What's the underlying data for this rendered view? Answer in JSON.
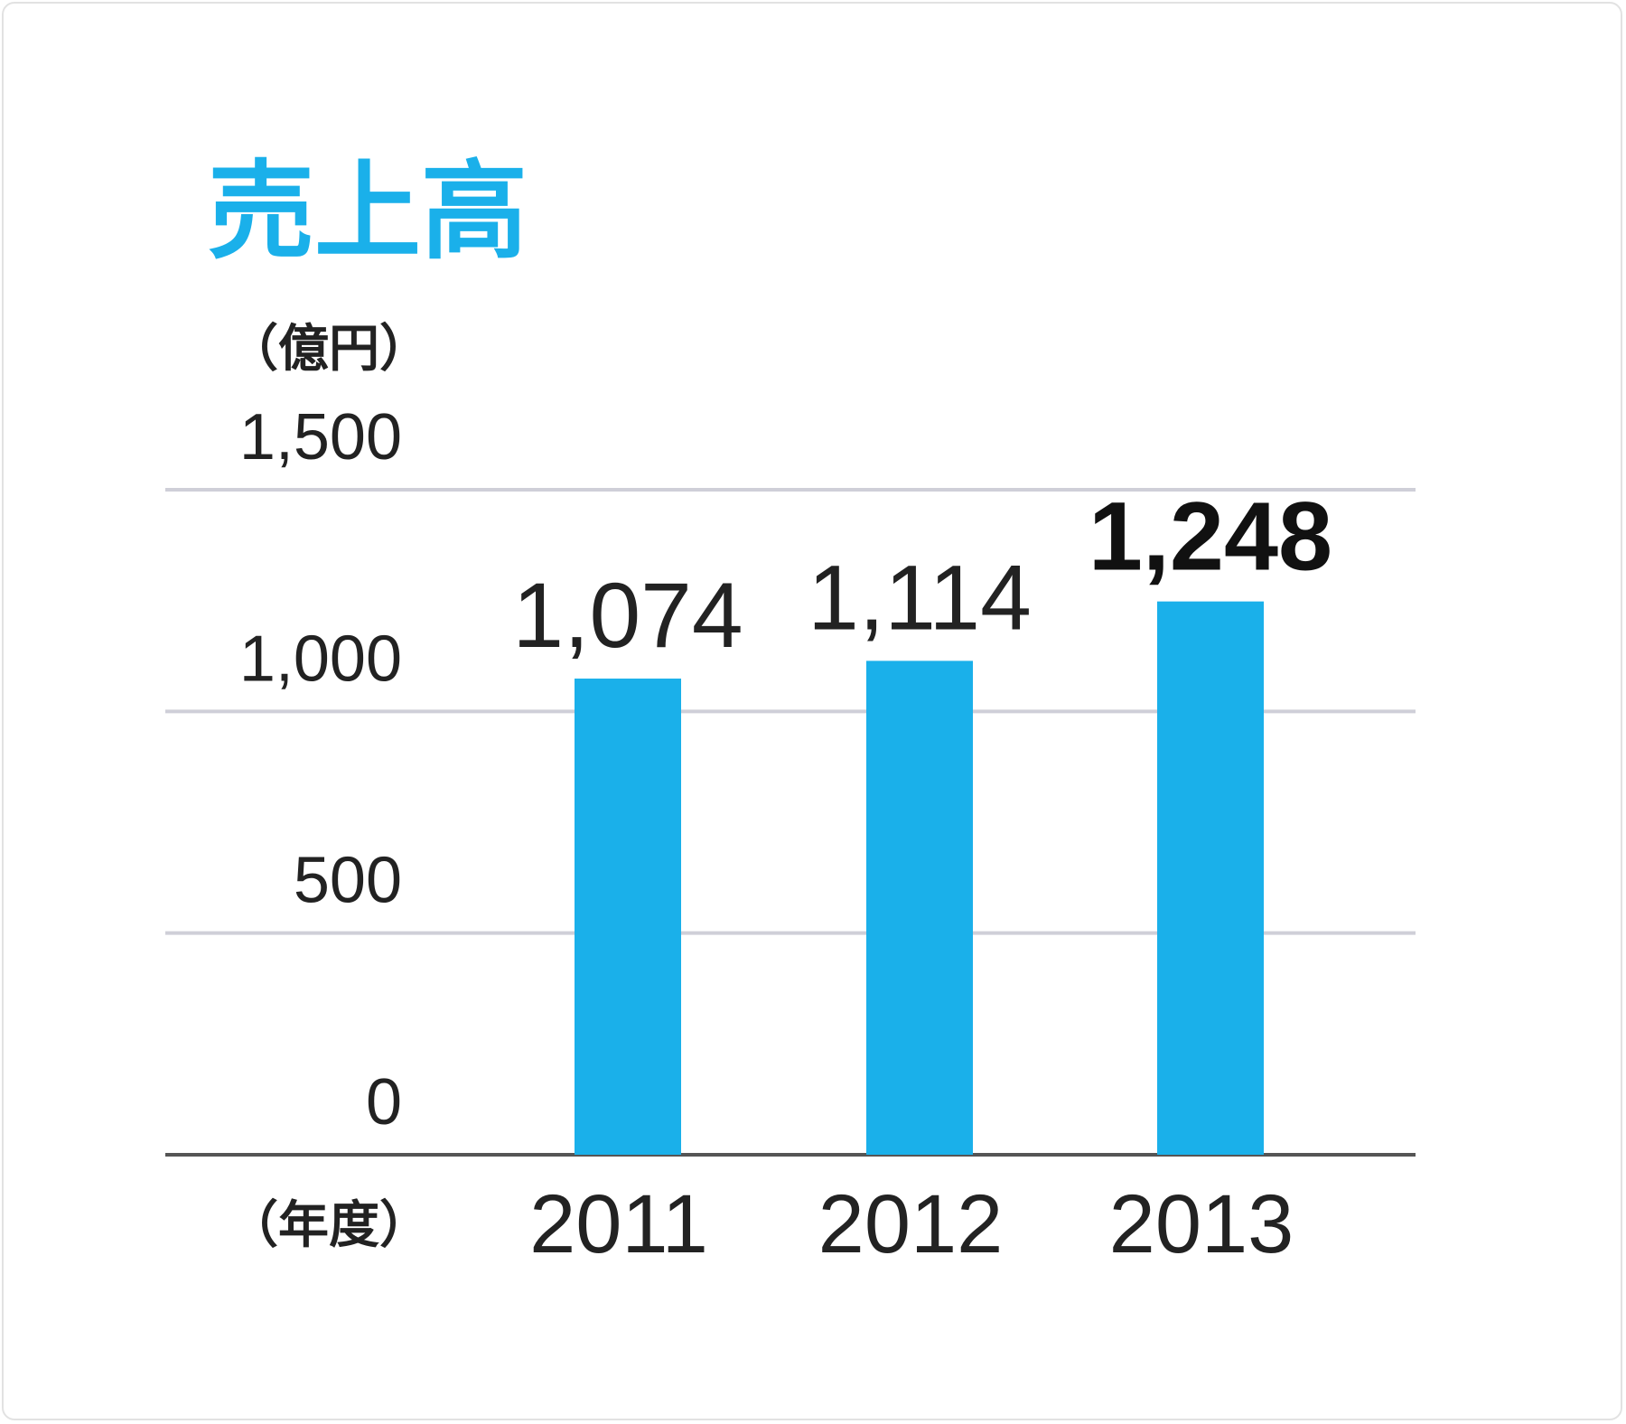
{
  "chart_data": {
    "type": "bar",
    "title": "売上高",
    "unit_label": "（億円）",
    "xlabel": "（年度）",
    "categories": [
      "2011",
      "2012",
      "2013"
    ],
    "values": [
      1074,
      1114,
      1248
    ],
    "value_labels": [
      "1,074",
      "1,114",
      "1,248"
    ],
    "ylim": [
      0,
      1500
    ],
    "yticks": [
      0,
      500,
      1000,
      1500
    ],
    "ytick_labels": [
      "0",
      "500",
      "1,000",
      "1,500"
    ],
    "grid": true,
    "bar_color": "#1ab0ea",
    "grid_color": "#cfcfd8",
    "axis_color": "#555555"
  }
}
